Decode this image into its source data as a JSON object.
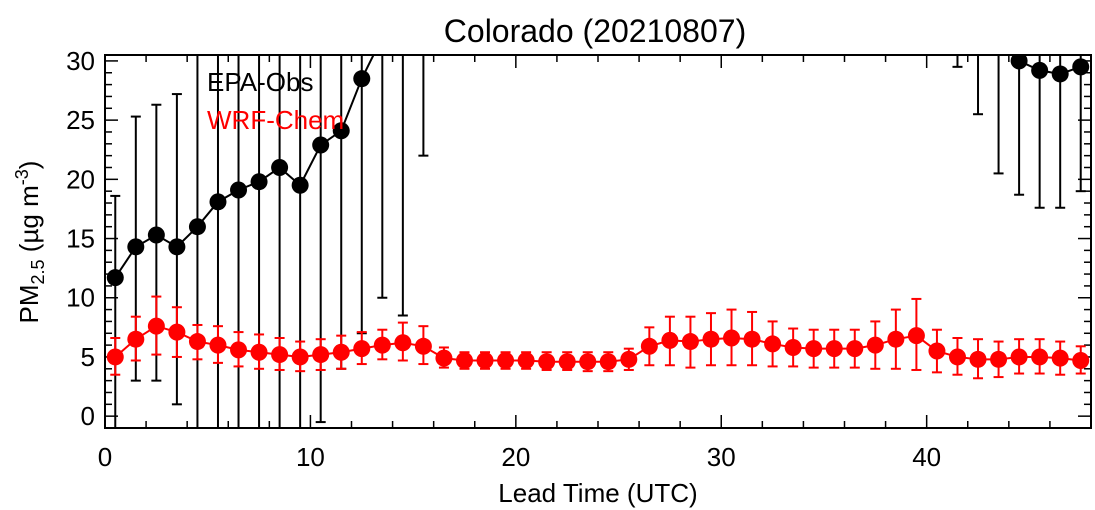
{
  "chart_data": {
    "type": "line",
    "title": "Colorado (20210807)",
    "xlabel": "Lead Time (UTC)",
    "ylabel": {
      "base": "PM",
      "sub": "2.5",
      "unit": " (µg m",
      "sup": "-3",
      "close": ")"
    },
    "xlim": [
      0,
      48
    ],
    "ylim": [
      -1,
      30.5
    ],
    "xticks": [
      0,
      10,
      20,
      30,
      40
    ],
    "yticks": [
      0,
      5,
      10,
      15,
      20,
      25,
      30
    ],
    "grid": false,
    "legend_position": "top-left",
    "series": [
      {
        "name": "EPA-Obs",
        "color": "#000000",
        "x": [
          0.5,
          1.5,
          2.5,
          3.5,
          4.5,
          5.5,
          6.5,
          7.5,
          8.5,
          9.5,
          10.5,
          11.5,
          12.5,
          13.5,
          14.5,
          15.5,
          41.5,
          42.5,
          43.5,
          44.5,
          45.5,
          46.5,
          47.5
        ],
        "values": [
          11.7,
          14.3,
          15.3,
          14.3,
          16.0,
          18.1,
          19.1,
          19.8,
          21.0,
          19.5,
          22.9,
          24.1,
          28.5,
          32.0,
          33.0,
          34.0,
          33.5,
          33.0,
          32.0,
          30.0,
          29.2,
          28.9,
          29.5
        ],
        "err_low": [
          -2,
          3,
          3,
          1,
          -2,
          -2,
          -2,
          -2,
          -2,
          -2,
          -0.5,
          4,
          7,
          10,
          8.5,
          22,
          29.5,
          25.5,
          20.5,
          18.7,
          17.6,
          17.6,
          19
        ],
        "err_high": [
          18.6,
          25.3,
          26.3,
          27.2,
          34,
          34,
          34,
          34,
          34,
          34,
          34,
          34,
          34,
          34,
          34,
          34,
          34,
          34,
          34,
          34,
          34,
          34,
          34
        ]
      },
      {
        "name": "WRF-Chem",
        "color": "#ff0000",
        "x": [
          0.5,
          1.5,
          2.5,
          3.5,
          4.5,
          5.5,
          6.5,
          7.5,
          8.5,
          9.5,
          10.5,
          11.5,
          12.5,
          13.5,
          14.5,
          15.5,
          16.5,
          17.5,
          18.5,
          19.5,
          20.5,
          21.5,
          22.5,
          23.5,
          24.5,
          25.5,
          26.5,
          27.5,
          28.5,
          29.5,
          30.5,
          31.5,
          32.5,
          33.5,
          34.5,
          35.5,
          36.5,
          37.5,
          38.5,
          39.5,
          40.5,
          41.5,
          42.5,
          43.5,
          44.5,
          45.5,
          46.5,
          47.5
        ],
        "values": [
          5.0,
          6.5,
          7.6,
          7.1,
          6.3,
          6.0,
          5.6,
          5.4,
          5.2,
          5.0,
          5.2,
          5.4,
          5.7,
          6.0,
          6.2,
          5.9,
          4.9,
          4.7,
          4.7,
          4.7,
          4.7,
          4.6,
          4.6,
          4.6,
          4.6,
          4.8,
          5.9,
          6.4,
          6.3,
          6.5,
          6.6,
          6.5,
          6.1,
          5.8,
          5.7,
          5.7,
          5.7,
          6.0,
          6.5,
          6.8,
          5.5,
          5.0,
          4.8,
          4.8,
          5.0,
          5.0,
          4.9,
          4.7
        ],
        "err_low": [
          3.5,
          4.7,
          5.2,
          5.0,
          4.8,
          4.5,
          4.2,
          4.0,
          3.9,
          3.8,
          3.9,
          4.0,
          4.4,
          4.8,
          4.7,
          4.4,
          4.1,
          4.0,
          4.0,
          4.0,
          4.0,
          3.9,
          3.9,
          3.8,
          3.8,
          3.9,
          4.3,
          4.3,
          4.1,
          4.3,
          4.3,
          4.3,
          4.2,
          4.2,
          4.1,
          4.1,
          4.1,
          4.0,
          4.0,
          3.9,
          3.7,
          3.5,
          3.2,
          3.3,
          3.6,
          3.6,
          3.5,
          3.6
        ],
        "err_high": [
          6.6,
          8.4,
          10.1,
          9.2,
          7.7,
          7.6,
          7.1,
          6.9,
          6.6,
          6.3,
          6.5,
          6.8,
          7.1,
          7.3,
          7.9,
          7.6,
          5.8,
          5.4,
          5.4,
          5.4,
          5.4,
          5.4,
          5.4,
          5.4,
          5.4,
          5.7,
          7.5,
          8.4,
          8.4,
          8.7,
          9.0,
          8.8,
          8.0,
          7.4,
          7.3,
          7.3,
          7.3,
          8.0,
          9.0,
          9.9,
          7.3,
          6.6,
          6.5,
          6.3,
          6.5,
          6.5,
          6.3,
          5.9
        ]
      }
    ]
  }
}
